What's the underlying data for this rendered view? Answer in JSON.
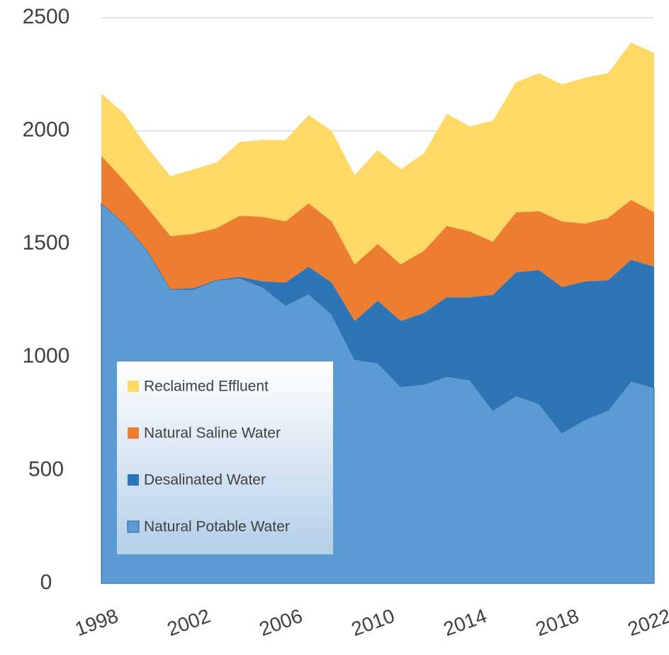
{
  "chart_data": {
    "type": "stacked_area",
    "x": [
      1998,
      1999,
      2000,
      2001,
      2002,
      2003,
      2004,
      2005,
      2006,
      2007,
      2008,
      2009,
      2010,
      2011,
      2012,
      2013,
      2014,
      2015,
      2016,
      2017,
      2018,
      2019,
      2020,
      2021,
      2022
    ],
    "series": [
      {
        "name": "Natural Potable Water",
        "color": "#5b9bd5",
        "values": [
          1680,
          1590,
          1470,
          1300,
          1300,
          1340,
          1350,
          1310,
          1230,
          1280,
          1190,
          990,
          975,
          870,
          880,
          915,
          900,
          765,
          830,
          795,
          665,
          725,
          765,
          895,
          865
        ]
      },
      {
        "name": "Desalinated Water",
        "color": "#2e75b6",
        "values": [
          0,
          0,
          0,
          0,
          5,
          0,
          5,
          25,
          100,
          120,
          140,
          170,
          275,
          290,
          315,
          350,
          365,
          510,
          545,
          590,
          645,
          610,
          575,
          535,
          535
        ]
      },
      {
        "name": "Natural Saline Water",
        "color": "#ed7d31",
        "values": [
          210,
          190,
          190,
          235,
          240,
          230,
          270,
          285,
          270,
          280,
          270,
          250,
          250,
          250,
          275,
          315,
          290,
          235,
          265,
          260,
          290,
          255,
          275,
          265,
          240
        ]
      },
      {
        "name": "Reclaimed Effluent",
        "color": "#ffd966",
        "values": [
          275,
          295,
          265,
          265,
          285,
          290,
          325,
          340,
          360,
          390,
          400,
          395,
          415,
          420,
          430,
          495,
          465,
          535,
          575,
          610,
          605,
          645,
          640,
          695,
          705
        ]
      }
    ],
    "xlim": [
      1998,
      2022
    ],
    "xticks": [
      1998,
      2002,
      2006,
      2010,
      2014,
      2018,
      2022
    ],
    "ylim": [
      0,
      2500
    ],
    "yticks": [
      0,
      500,
      1000,
      1500,
      2000,
      2500
    ],
    "grid": true,
    "legend": "lower left"
  }
}
